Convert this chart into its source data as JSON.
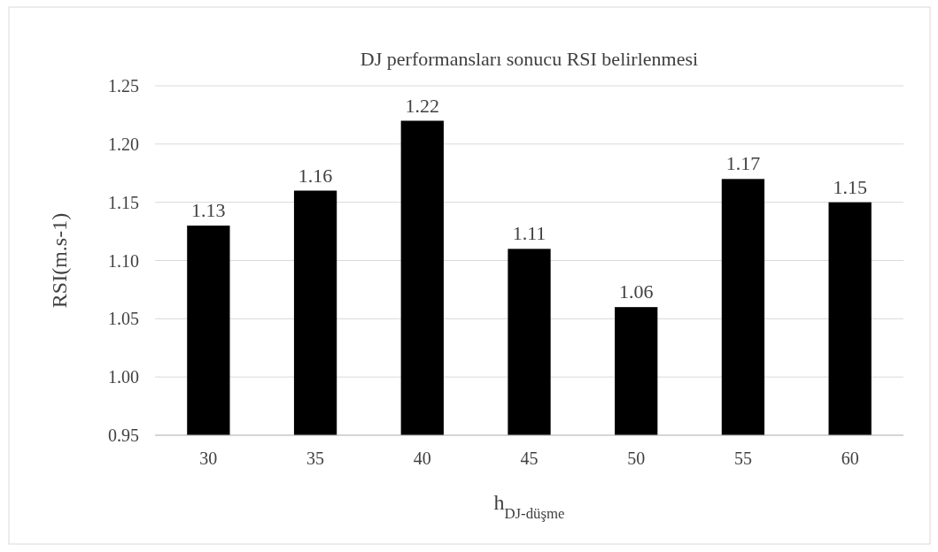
{
  "chart_data": {
    "type": "bar",
    "title": "DJ performansları sonucu RSI belirlenmesi",
    "xlabel": "h$_{DJ-düşme}$",
    "ylabel": "RSI(m.s-1)",
    "categories": [
      "30",
      "35",
      "40",
      "45",
      "50",
      "55",
      "60"
    ],
    "values": [
      1.13,
      1.16,
      1.22,
      1.11,
      1.06,
      1.17,
      1.15
    ],
    "color": "#000000",
    "data_labels": true,
    "grid": "y",
    "ylim": [
      0.95,
      1.25
    ],
    "yticks": [
      {
        "value": 0.95,
        "label": "0.95"
      },
      {
        "value": 1.0,
        "label": "1.00"
      },
      {
        "value": 1.05,
        "label": "1.05"
      },
      {
        "value": 1.1,
        "label": "1.10"
      },
      {
        "value": 1.15,
        "label": "1.15"
      },
      {
        "value": 1.2,
        "label": "1.20"
      },
      {
        "value": 1.25,
        "label": "1.25"
      }
    ]
  }
}
